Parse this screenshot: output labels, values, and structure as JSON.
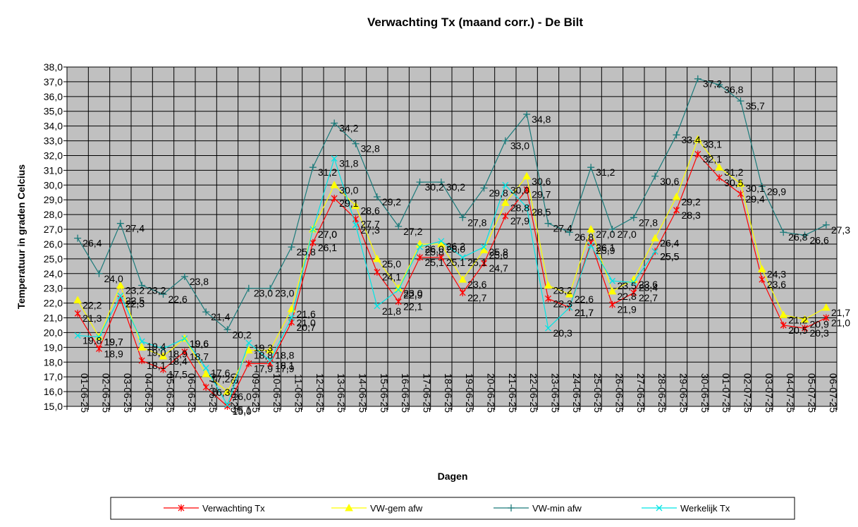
{
  "chart_data": {
    "type": "line",
    "title": "Verwachting Tx (maand corr.) - De Bilt",
    "xlabel": "Dagen",
    "ylabel": "Temperatuur in graden Celcius",
    "ylim": [
      15,
      38
    ],
    "y_tick_step": 1,
    "grid": true,
    "plot_background": "#c0c0c0",
    "legend_position": "bottom",
    "categories": [
      "01-06-25",
      "02-06-25",
      "03-06-25",
      "04-06-25",
      "05-06-25",
      "06-06-25",
      "07-06-25",
      "08-06-25",
      "09-06-25",
      "10-06-25",
      "11-06-25",
      "12-06-25",
      "13-06-25",
      "14-06-25",
      "15-06-25",
      "16-06-25",
      "17-06-25",
      "18-06-25",
      "19-06-25",
      "20-06-25",
      "21-06-25",
      "22-06-25",
      "23-06-25",
      "24-06-25",
      "25-06-25",
      "26-06-25",
      "27-06-25",
      "28-06-25",
      "29-06-25",
      "30-06-25",
      "01-07-25",
      "02-07-25",
      "03-07-25",
      "04-07-25",
      "05-07-25",
      "06-07-25"
    ],
    "series": [
      {
        "name": "Verwachting Tx",
        "color": "#ff0000",
        "marker": "star",
        "values": [
          21.3,
          18.9,
          22.3,
          18.1,
          17.5,
          18.7,
          16.3,
          15.0,
          17.9,
          17.9,
          20.7,
          26.1,
          29.1,
          27.7,
          24.1,
          22.1,
          25.1,
          25.1,
          22.7,
          24.7,
          27.9,
          29.7,
          22.3,
          21.7,
          26.1,
          21.9,
          22.7,
          25.5,
          28.3,
          32.1,
          30.5,
          29.4,
          23.6,
          20.5,
          20.3,
          21.0
        ]
      },
      {
        "name": "VW-gem afw",
        "color": "#ffff00",
        "marker": "triangle",
        "values": [
          22.2,
          19.7,
          23.2,
          19.0,
          18.4,
          19.6,
          17.2,
          16.0,
          18.8,
          18.8,
          21.6,
          27.0,
          30.0,
          28.6,
          25.0,
          23.0,
          26.0,
          26.0,
          23.6,
          25.6,
          28.8,
          30.6,
          23.2,
          22.6,
          27.0,
          22.8,
          23.6,
          26.4,
          29.2,
          33.1,
          31.2,
          30.1,
          24.3,
          21.2,
          20.9,
          21.7
        ]
      },
      {
        "name": "VW-min afw",
        "color": "#1b7a7a",
        "marker": "plus",
        "values": [
          26.4,
          24.0,
          27.4,
          23.2,
          22.6,
          23.8,
          21.4,
          20.2,
          23.0,
          23.0,
          25.8,
          31.2,
          34.2,
          32.8,
          29.2,
          27.2,
          30.2,
          30.2,
          27.8,
          29.8,
          33.0,
          34.8,
          27.4,
          26.8,
          31.2,
          27.0,
          27.8,
          30.6,
          33.4,
          37.2,
          36.8,
          35.7,
          29.9,
          26.8,
          26.6,
          27.3
        ]
      },
      {
        "name": "Werkelijk Tx",
        "color": "#00e5e5",
        "marker": "x",
        "values": [
          19.8,
          19.7,
          22.5,
          19.4,
          18.9,
          19.6,
          17.6,
          15.1,
          19.3,
          18.1,
          21.0,
          27.0,
          31.8,
          27.3,
          21.8,
          22.9,
          25.8,
          26.2,
          25.1,
          25.8,
          30.0,
          28.5,
          20.3,
          21.7,
          25.9,
          23.5,
          23.4,
          25.5,
          null,
          null,
          null,
          null,
          null,
          null,
          null,
          null
        ]
      }
    ]
  }
}
